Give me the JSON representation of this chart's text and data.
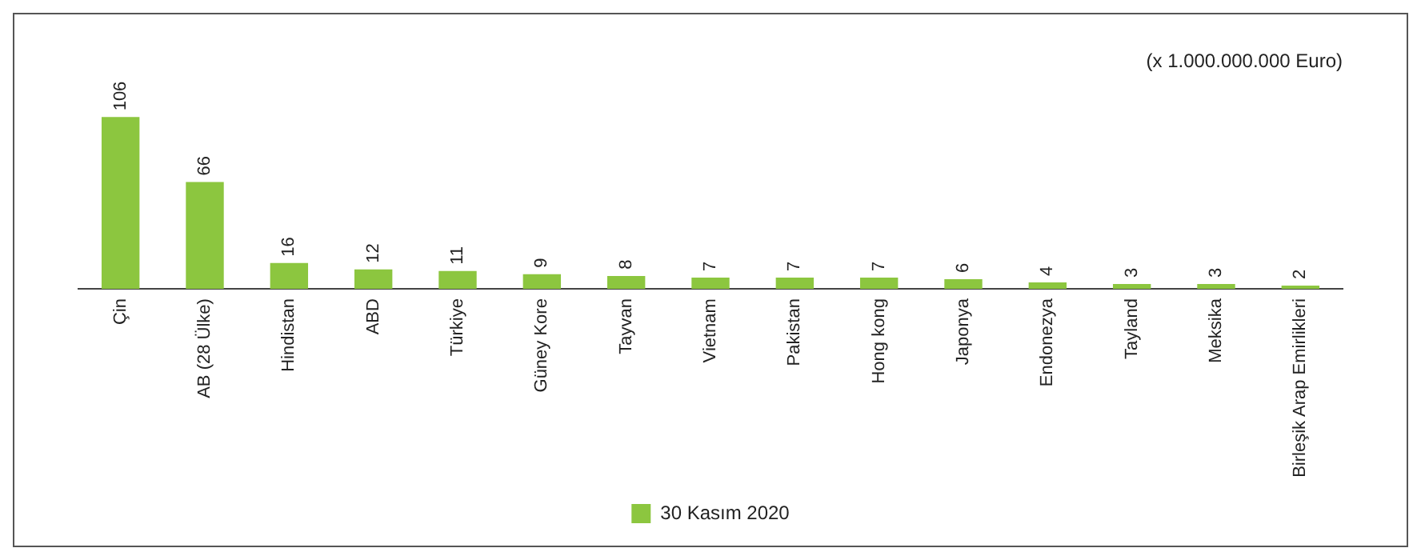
{
  "chart_data": {
    "type": "bar",
    "categories": [
      "Çin",
      "AB (28 Ülke)",
      "Hindistan",
      "ABD",
      "Türkiye",
      "Güney Kore",
      "Tayvan",
      "Vietnam",
      "Pakistan",
      "Hong kong",
      "Japonya",
      "Endonezya",
      "Tayland",
      "Meksika",
      "Birleşik Arap Emirlikleri"
    ],
    "series": [
      {
        "name": "30 Kasım 2020",
        "color": "#8cc63f",
        "values": [
          106,
          66,
          16,
          12,
          11,
          9,
          8,
          7,
          7,
          7,
          6,
          4,
          3,
          3,
          2
        ]
      }
    ],
    "data_labels": true,
    "legend": "bottom",
    "grid": false,
    "annotations": [
      "(x 1.000.000.000 Euro)"
    ]
  }
}
